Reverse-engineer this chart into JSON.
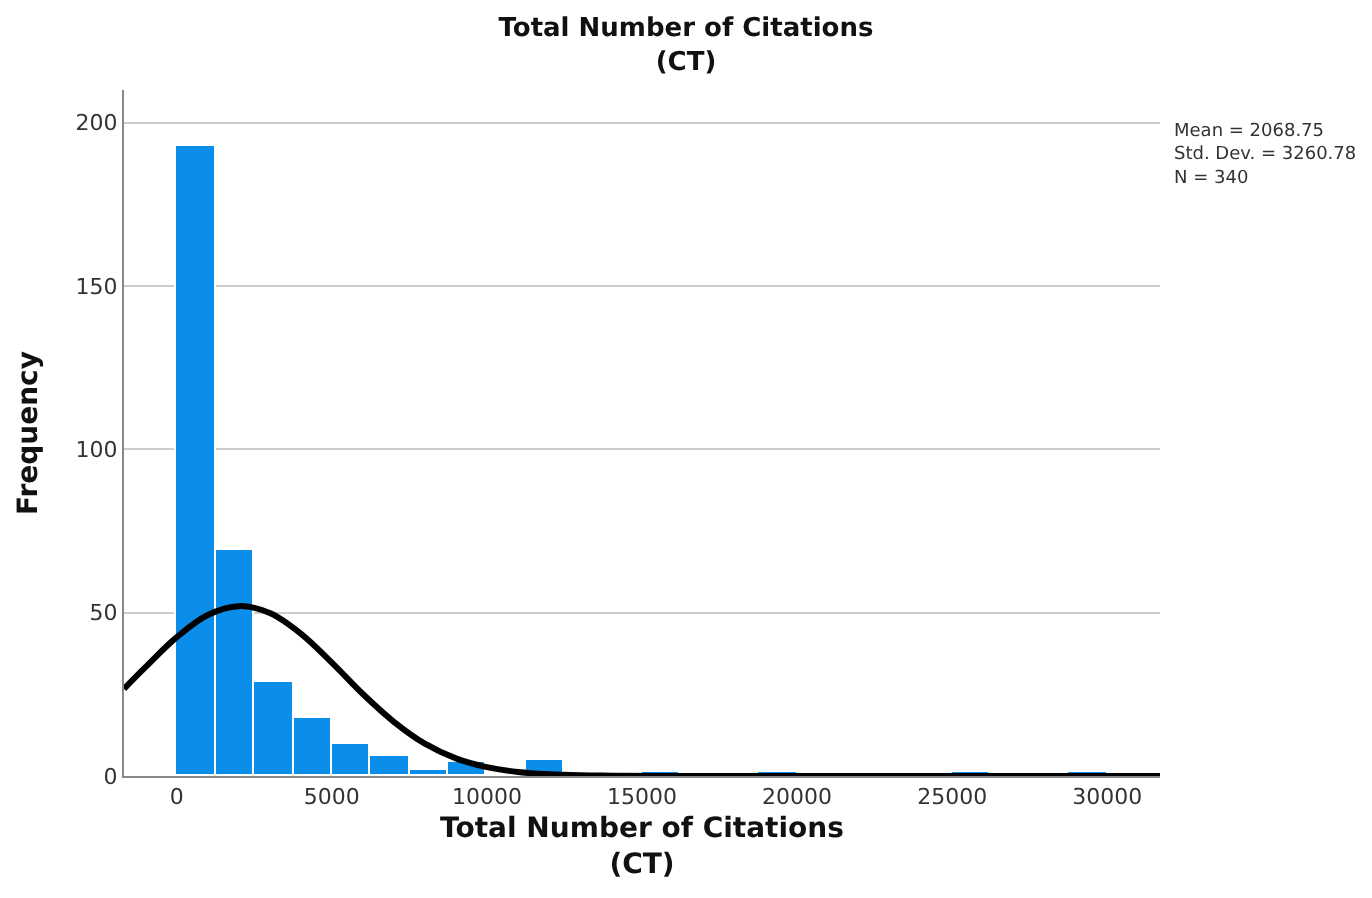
{
  "chart_data": {
    "type": "histogram",
    "title": "Total Number of Citations\n(CT)",
    "xlabel": "Total Number of Citations\n(CT)",
    "ylabel": "Frequency",
    "bins": [
      0,
      1250,
      2500,
      3750,
      5000,
      6250,
      7500,
      8750,
      10000,
      11250,
      12500,
      13750,
      15000,
      16250,
      17500,
      18750,
      20000,
      21250,
      22500,
      23750,
      25000,
      26250,
      27500,
      28750,
      30000
    ],
    "values": [
      193,
      69,
      29,
      18,
      10,
      6,
      2,
      4,
      0,
      5,
      0,
      0,
      1,
      0,
      0,
      1,
      0,
      0,
      0,
      0,
      1,
      0,
      0,
      1
    ],
    "color": "#0a8ee9",
    "series": [
      {
        "type": "line",
        "color": "#000000",
        "x": [
          -1700,
          -1000,
          0,
          1000,
          2000,
          3000,
          4000,
          5000,
          6000,
          7000,
          8000,
          9000,
          10000,
          11000,
          12000,
          13000,
          14000,
          16000,
          20000,
          25000,
          31700
        ],
        "values": [
          26.7,
          33.4,
          42.5,
          49.3,
          52.0,
          49.9,
          43.6,
          34.7,
          25.1,
          16.6,
          9.9,
          5.4,
          2.7,
          1.2,
          0.5,
          0.2,
          0.1,
          0,
          0,
          0,
          0
        ]
      }
    ],
    "xlim": [
      -1700,
      31700
    ],
    "ylim": [
      0,
      210
    ],
    "xticks": [
      0,
      5000,
      10000,
      15000,
      20000,
      25000,
      30000
    ],
    "yticks": [
      0,
      50,
      100,
      150,
      200
    ],
    "grid": "y",
    "marker": "none",
    "annotations": [
      "Mean = 2068.75\nStd. Dev. = 3260.78\nN = 340"
    ]
  }
}
